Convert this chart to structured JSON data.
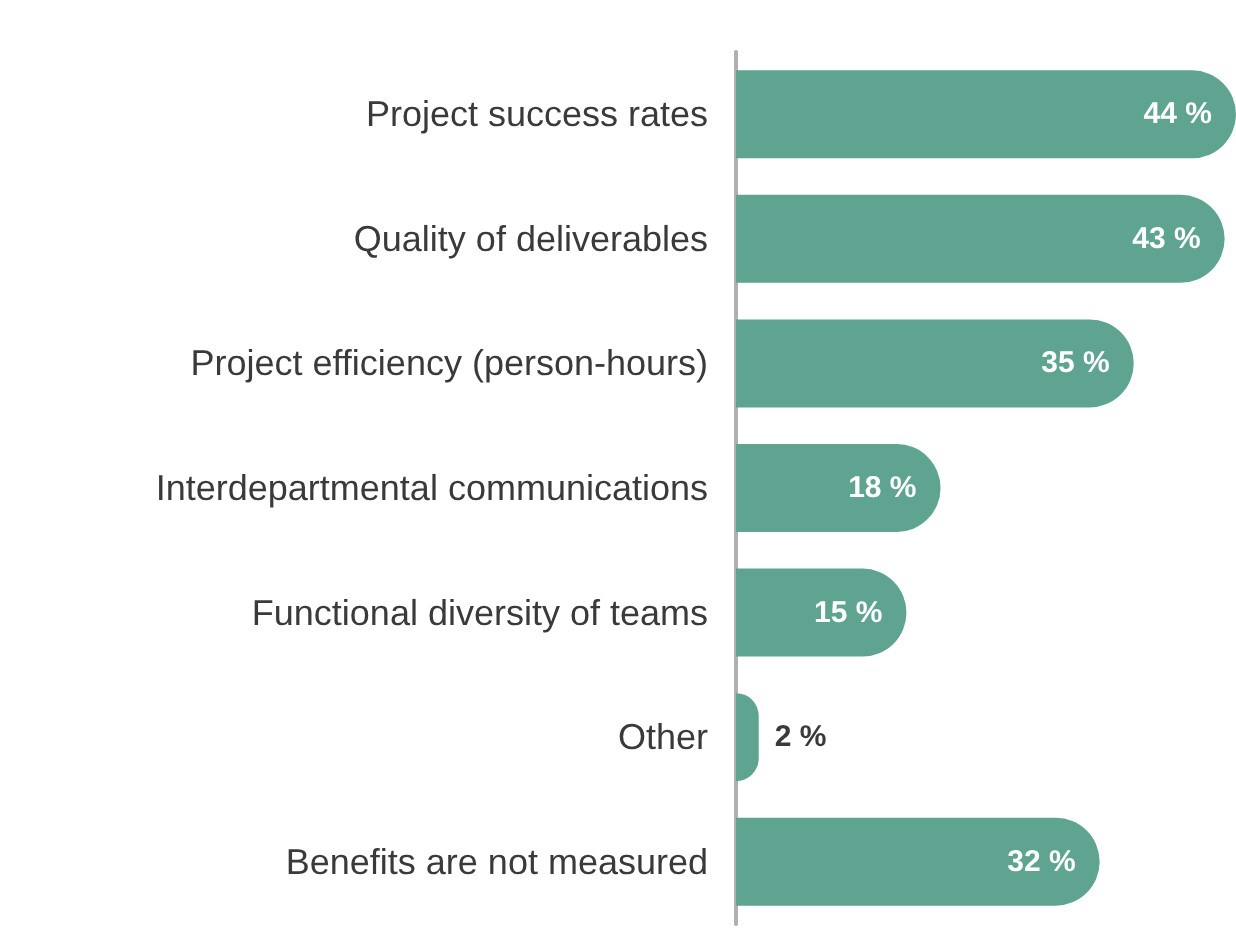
{
  "chart_data": {
    "type": "bar",
    "orientation": "horizontal",
    "categories": [
      "Project success rates",
      "Quality of deliverables",
      "Project efficiency (person-hours)",
      "Interdepartmental communications",
      "Functional diversity of teams",
      "Other",
      "Benefits are not measured"
    ],
    "values": [
      44,
      43,
      35,
      18,
      15,
      2,
      32
    ],
    "value_labels": [
      "44 %",
      "43 %",
      "35 %",
      "18 %",
      "15 %",
      "2 %",
      "32 %"
    ],
    "color": "#5fa491"
  }
}
